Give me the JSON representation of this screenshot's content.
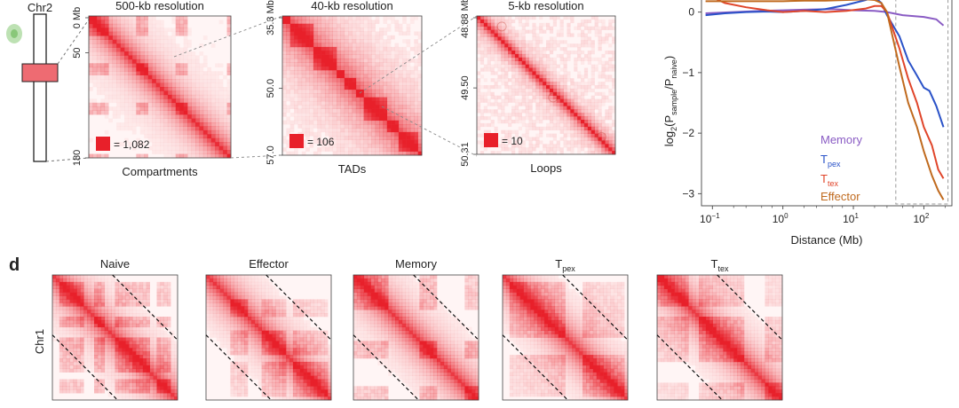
{
  "chromosome_panel": {
    "chrom_label": "Chr2",
    "ticks": [
      "0 Mb",
      "50",
      "180"
    ]
  },
  "resolution_maps": [
    {
      "title": "500-kb resolution",
      "feature": "Compartments",
      "scale_value": "= 1,082",
      "axis_ticks": [
        "0 Mb",
        "50",
        "180"
      ],
      "color": "#e8202a",
      "texture": "compartment"
    },
    {
      "title": "40-kb resolution",
      "feature": "TADs",
      "scale_value": "= 106",
      "axis_ticks": [
        "35.3 Mb",
        "50.0",
        "57.0"
      ],
      "color": "#e8202a",
      "texture": "tad"
    },
    {
      "title": "5-kb resolution",
      "feature": "Loops",
      "scale_value": "= 10",
      "axis_ticks": [
        "48.88 Mb",
        "49.50",
        "50.31"
      ],
      "color": "#e8202a",
      "texture": "loop"
    }
  ],
  "chart_data": {
    "type": "line",
    "xlabel": "Distance (Mb)",
    "ylabel": "log2(P sample/P naive)",
    "x_scale": "log",
    "xlim": [
      0.07,
      250
    ],
    "ylim": [
      -3.2,
      0.2
    ],
    "x_ticks": [
      {
        "value": 0.1,
        "base": "10",
        "exp": "−1"
      },
      {
        "value": 1,
        "base": "10",
        "exp": "0"
      },
      {
        "value": 10,
        "base": "10",
        "exp": "1"
      },
      {
        "value": 100,
        "base": "10",
        "exp": "2"
      }
    ],
    "y_ticks": [
      0,
      -1,
      -2,
      -3
    ],
    "y_tick_labels": [
      "0",
      "−1",
      "−2",
      "−3"
    ],
    "highlight_region_x": [
      40,
      220
    ],
    "legend_position": "bottom-left",
    "series": [
      {
        "name": "Memory",
        "name_sub": "",
        "color": "#8a5cc4",
        "x": [
          0.08,
          0.2,
          0.5,
          1,
          2,
          5,
          10,
          20,
          30,
          50,
          100,
          150,
          190
        ],
        "y": [
          -0.02,
          0.0,
          0.02,
          0.03,
          0.04,
          0.05,
          0.03,
          0.02,
          0.0,
          -0.05,
          -0.08,
          -0.12,
          -0.22
        ]
      },
      {
        "name": "T",
        "name_sub": "pex",
        "color": "#2a52c8",
        "x": [
          0.08,
          0.15,
          0.3,
          0.6,
          1,
          2,
          4,
          8,
          15,
          20,
          25,
          30,
          45,
          60,
          80,
          100,
          120,
          150,
          190
        ],
        "y": [
          -0.05,
          -0.02,
          0.0,
          0.01,
          0.0,
          0.02,
          0.05,
          0.12,
          0.2,
          0.25,
          0.15,
          -0.05,
          -0.4,
          -0.8,
          -1.05,
          -1.25,
          -1.3,
          -1.55,
          -1.9
        ]
      },
      {
        "name": "T",
        "name_sub": "tex",
        "color": "#e0452a",
        "x": [
          0.08,
          0.15,
          0.3,
          0.6,
          1,
          2,
          4,
          8,
          15,
          20,
          25,
          30,
          45,
          60,
          80,
          100,
          130,
          160,
          190
        ],
        "y": [
          0.3,
          0.15,
          0.08,
          0.03,
          0.0,
          0.02,
          0.0,
          0.02,
          0.06,
          0.1,
          0.1,
          0.0,
          -0.6,
          -1.1,
          -1.5,
          -1.9,
          -2.2,
          -2.6,
          -2.75
        ]
      },
      {
        "name": "Effector",
        "name_sub": "",
        "color": "#c06a1e",
        "x": [
          0.08,
          0.15,
          0.3,
          0.6,
          1,
          2,
          4,
          8,
          15,
          20,
          25,
          30,
          45,
          60,
          80,
          100,
          130,
          160,
          190
        ],
        "y": [
          0.18,
          0.18,
          0.18,
          0.18,
          0.18,
          0.19,
          0.19,
          0.2,
          0.21,
          0.2,
          0.15,
          0.0,
          -0.9,
          -1.5,
          -1.9,
          -2.3,
          -2.7,
          -2.95,
          -3.1
        ]
      }
    ]
  },
  "panel_d": {
    "panel_letter": "d",
    "row_label": "Chr1",
    "maps": [
      {
        "title": "Naive",
        "title_sub": ""
      },
      {
        "title": "Effector",
        "title_sub": ""
      },
      {
        "title": "Memory",
        "title_sub": ""
      },
      {
        "title": "T",
        "title_sub": "pex"
      },
      {
        "title": "T",
        "title_sub": "tex"
      }
    ]
  }
}
